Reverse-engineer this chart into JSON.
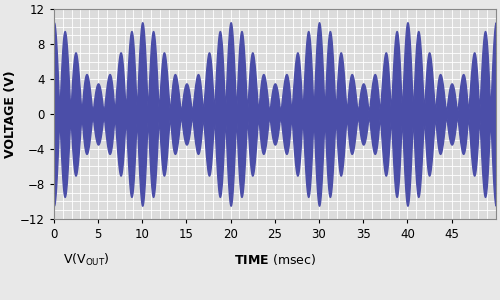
{
  "ylabel": "VOLTAGE (V)",
  "xlim": [
    0,
    50
  ],
  "ylim": [
    -12,
    12
  ],
  "xticks": [
    0,
    5,
    10,
    15,
    20,
    25,
    30,
    35,
    40,
    45
  ],
  "yticks": [
    -12,
    -8,
    -4,
    0,
    4,
    8,
    12
  ],
  "fill_color": "#4b4ea8",
  "fill_alpha": 1.0,
  "background_color": "#dcdcdc",
  "grid_color": "#ffffff",
  "carrier_freq": 0.4,
  "mod_freq": 0.1,
  "carrier_amp": 7.0,
  "mod_amp": 3.5,
  "t_start": 0,
  "t_end": 50,
  "n_points": 10000,
  "fig_bg": "#e8e8e8"
}
